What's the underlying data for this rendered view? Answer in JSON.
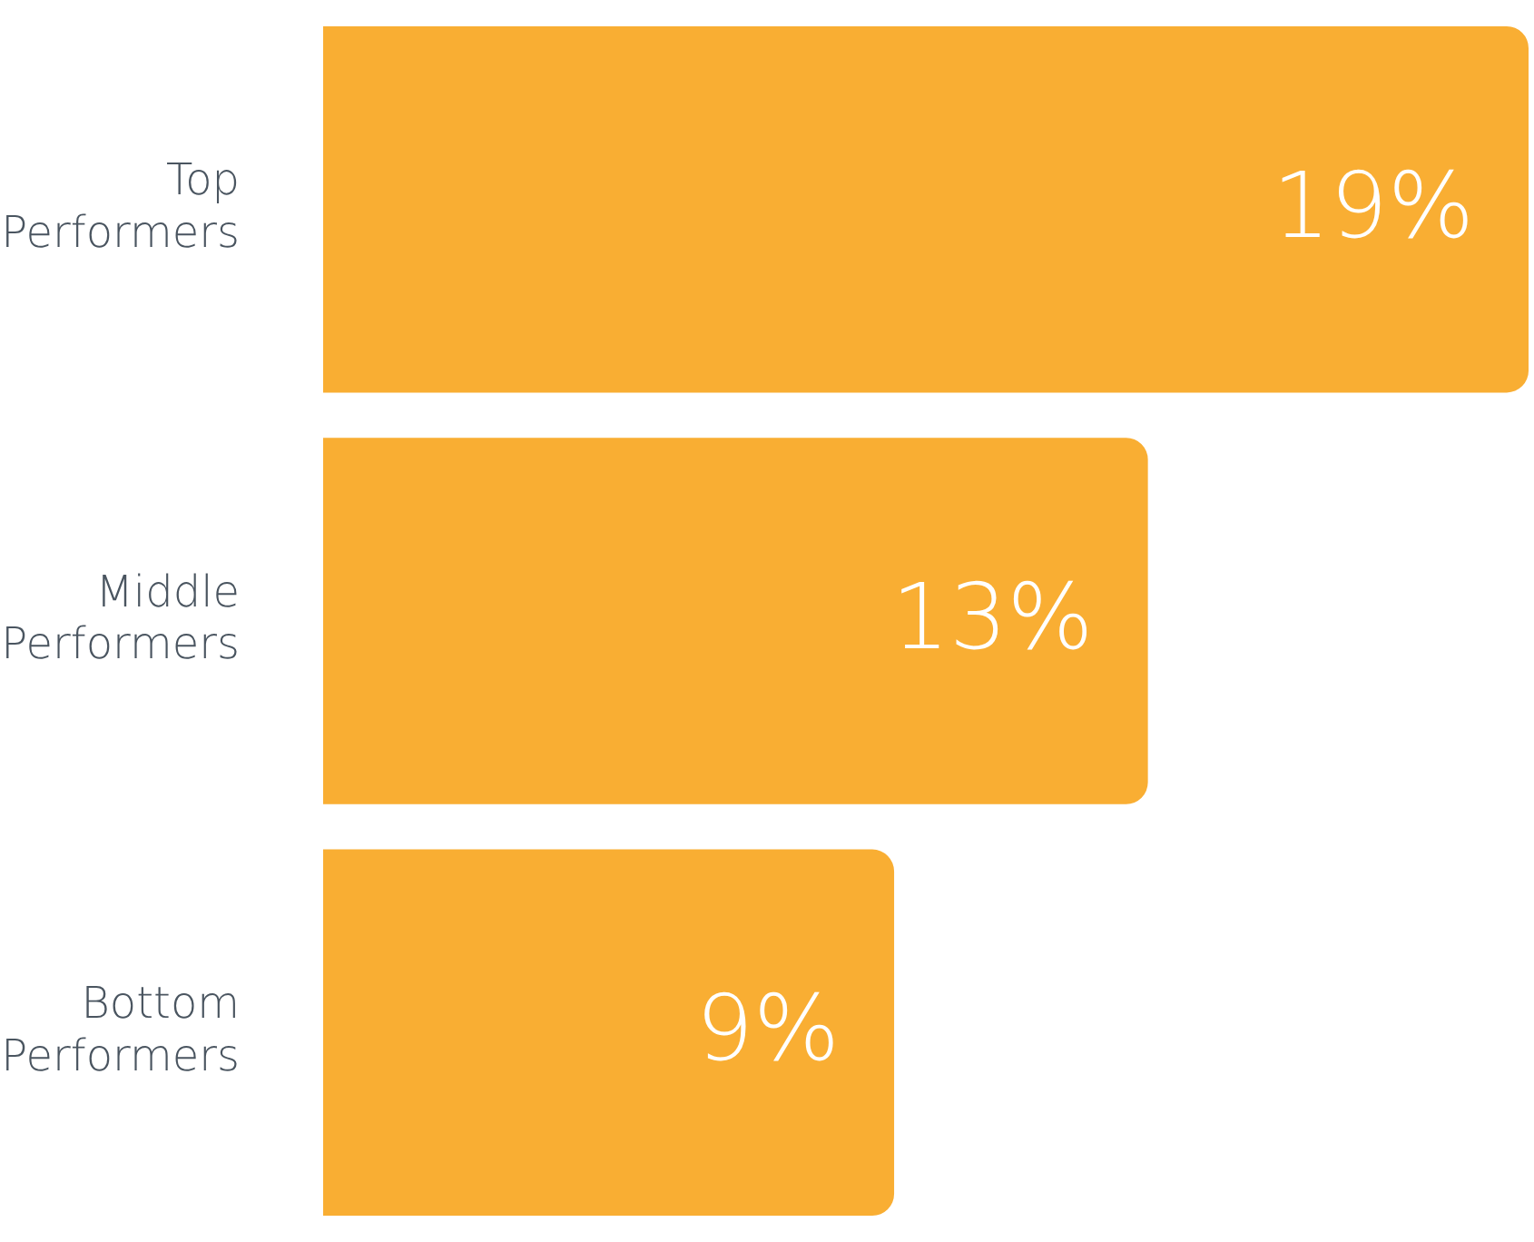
{
  "chart_data": {
    "type": "bar",
    "orientation": "horizontal",
    "categories": [
      "Top Performers",
      "Middle Performers",
      "Bottom Performers"
    ],
    "values": [
      19,
      13,
      9
    ],
    "color": "#f9ae33",
    "value_labels": [
      "19%",
      "13%",
      "9%"
    ]
  }
}
